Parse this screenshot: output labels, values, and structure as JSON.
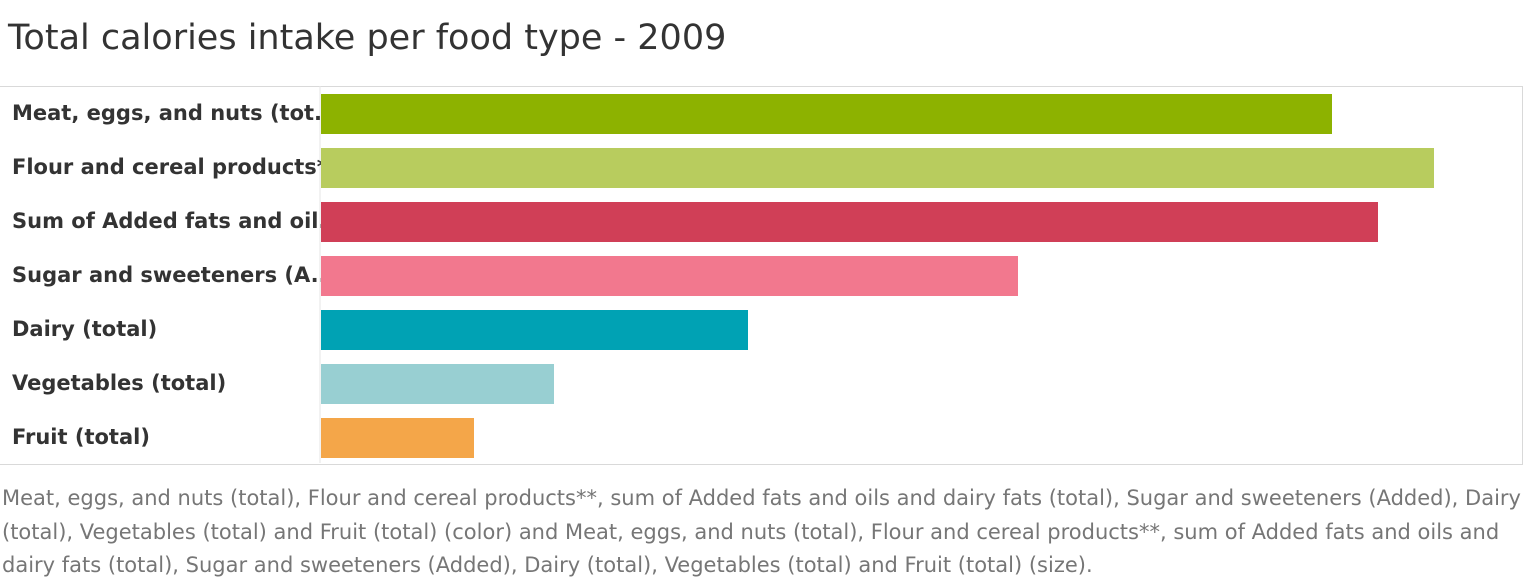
{
  "chart_data": {
    "type": "bar",
    "orientation": "horizontal",
    "title": "Total calories intake per food type - 2009",
    "categories": [
      "Meat, eggs, and nuts (tot..",
      "Flour and cereal products**",
      "Sum of Added fats and oil..",
      "Sugar and sweeteners (A..",
      "Dairy (total)",
      "Vegetables (total)",
      "Fruit (total)"
    ],
    "values": [
      1011,
      1113,
      1057,
      697,
      427,
      233,
      153
    ],
    "colors": [
      "#8db200",
      "#b8cc5e",
      "#d03f57",
      "#f2788e",
      "#00a2b4",
      "#98cfd2",
      "#f4a649"
    ],
    "xlim": [
      0,
      1200
    ],
    "xlabel": "",
    "ylabel": "",
    "legend": "none",
    "grid": false,
    "caption": "Meat, eggs, and nuts (total), Flour and cereal products**, sum of Added fats and oils and dairy fats (total), Sugar and sweeteners (Added), Dairy (total), Vegetables (total) and Fruit (total) (color) and Meat, eggs, and nuts (total), Flour and cereal products**, sum of Added fats and oils and dairy fats (total), Sugar and sweeteners (Added), Dairy (total), Vegetables (total) and Fruit (total) (size)."
  }
}
